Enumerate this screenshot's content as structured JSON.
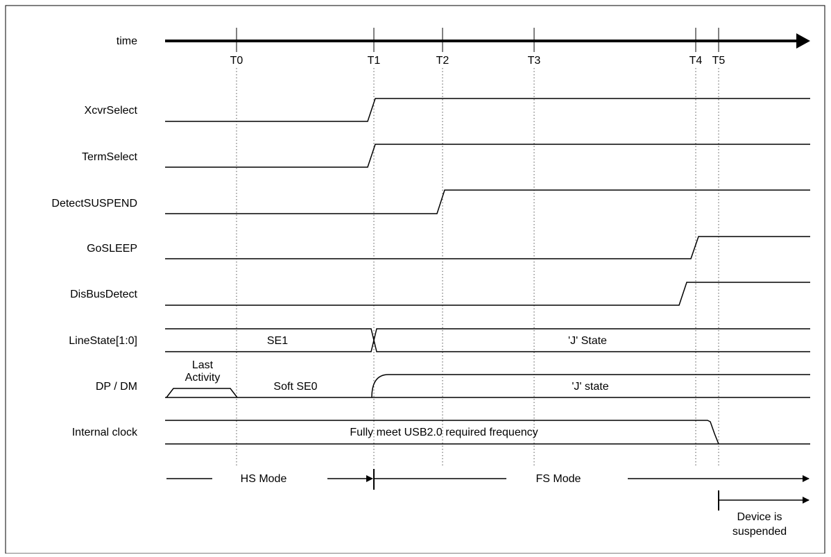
{
  "time_axis": {
    "label": "time",
    "ticks": [
      "T0",
      "T1",
      "T2",
      "T3",
      "T4",
      "T5"
    ]
  },
  "signals": {
    "xcvr_select": "XcvrSelect",
    "term_select": "TermSelect",
    "detect_suspend": "DetectSUSPEND",
    "go_sleep": "GoSLEEP",
    "dis_bus_detect": "DisBusDetect",
    "line_state": "LineState[1:0]",
    "dp_dm": "DP / DM",
    "internal_clock": "Internal clock"
  },
  "bus_values": {
    "line_state_before": "SE1",
    "line_state_after": "'J' State",
    "last_activity_line1": "Last",
    "last_activity_line2": "Activity",
    "dp_dm_before": "Soft SE0",
    "dp_dm_after": "'J' state",
    "clock_note": "Fully meet USB2.0 required frequency"
  },
  "modes": {
    "hs": "HS Mode",
    "fs": "FS Mode",
    "suspended_line1": "Device is",
    "suspended_line2": "suspended"
  }
}
